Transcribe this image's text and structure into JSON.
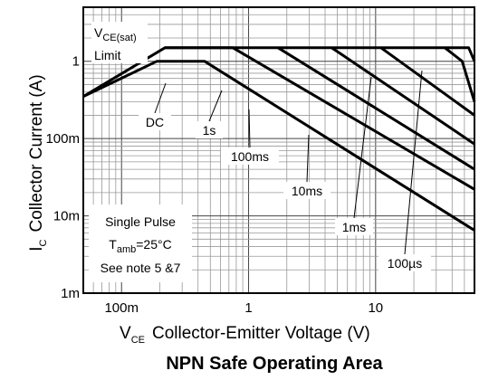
{
  "chart_data": {
    "type": "line",
    "title": "NPN Safe Operating Area",
    "xlabel": {
      "symbol": "V",
      "sub": "CE",
      "text": "Collector-Emitter Voltage (V)"
    },
    "ylabel": {
      "symbol": "I",
      "sub": "C",
      "text": "Collector Current (A)"
    },
    "x_scale": "log",
    "y_scale": "log",
    "xlim": [
      0.05,
      60
    ],
    "ylim": [
      0.001,
      5
    ],
    "x_ticks": [
      {
        "value": 0.1,
        "label": "100m"
      },
      {
        "value": 1,
        "label": "1"
      },
      {
        "value": 10,
        "label": "10"
      }
    ],
    "y_ticks": [
      {
        "value": 1,
        "label": "1"
      },
      {
        "value": 0.1,
        "label": "100m"
      },
      {
        "value": 0.01,
        "label": "10m"
      },
      {
        "value": 0.001,
        "label": "1m"
      }
    ],
    "grid": true,
    "vcesat_label": {
      "line1_symbol": "V",
      "line1_sub": "CE(sat)",
      "line2": "Limit"
    },
    "note_box": {
      "line1": "Single Pulse",
      "line2_symbol": "T",
      "line2_sub": "amb",
      "line2_rest": "=25°C",
      "line3": "See note 5 &7"
    },
    "series": [
      {
        "name": "DC",
        "points": [
          [
            0.05,
            0.35
          ],
          [
            0.19,
            1.0
          ],
          [
            0.45,
            1.0
          ],
          [
            60,
            0.0065
          ]
        ]
      },
      {
        "name": "1s",
        "points": [
          [
            0.22,
            1.5
          ],
          [
            0.75,
            1.5
          ],
          [
            60,
            0.022
          ]
        ]
      },
      {
        "name": "100ms",
        "points": [
          [
            1.7,
            1.5
          ],
          [
            60,
            0.04
          ]
        ]
      },
      {
        "name": "10ms",
        "points": [
          [
            4.5,
            1.5
          ],
          [
            60,
            0.085
          ]
        ]
      },
      {
        "name": "1ms",
        "points": [
          [
            11,
            1.5
          ],
          [
            60,
            0.2
          ]
        ]
      },
      {
        "name": "100µs",
        "points": [
          [
            35,
            1.5
          ],
          [
            48,
            1.0
          ],
          [
            60,
            0.3
          ]
        ]
      }
    ],
    "vcesat_limit": {
      "points": [
        [
          0.05,
          0.35
        ],
        [
          0.22,
          1.5
        ],
        [
          54,
          1.5
        ],
        [
          60,
          1.0
        ]
      ]
    },
    "curve_labels": [
      {
        "text": "DC",
        "series": "DC"
      },
      {
        "text": "1s",
        "series": "1s"
      },
      {
        "text": "100ms",
        "series": "100ms"
      },
      {
        "text": "10ms",
        "series": "10ms"
      },
      {
        "text": "1ms",
        "series": "1ms"
      },
      {
        "text": "100µs",
        "series": "100µs"
      }
    ]
  }
}
